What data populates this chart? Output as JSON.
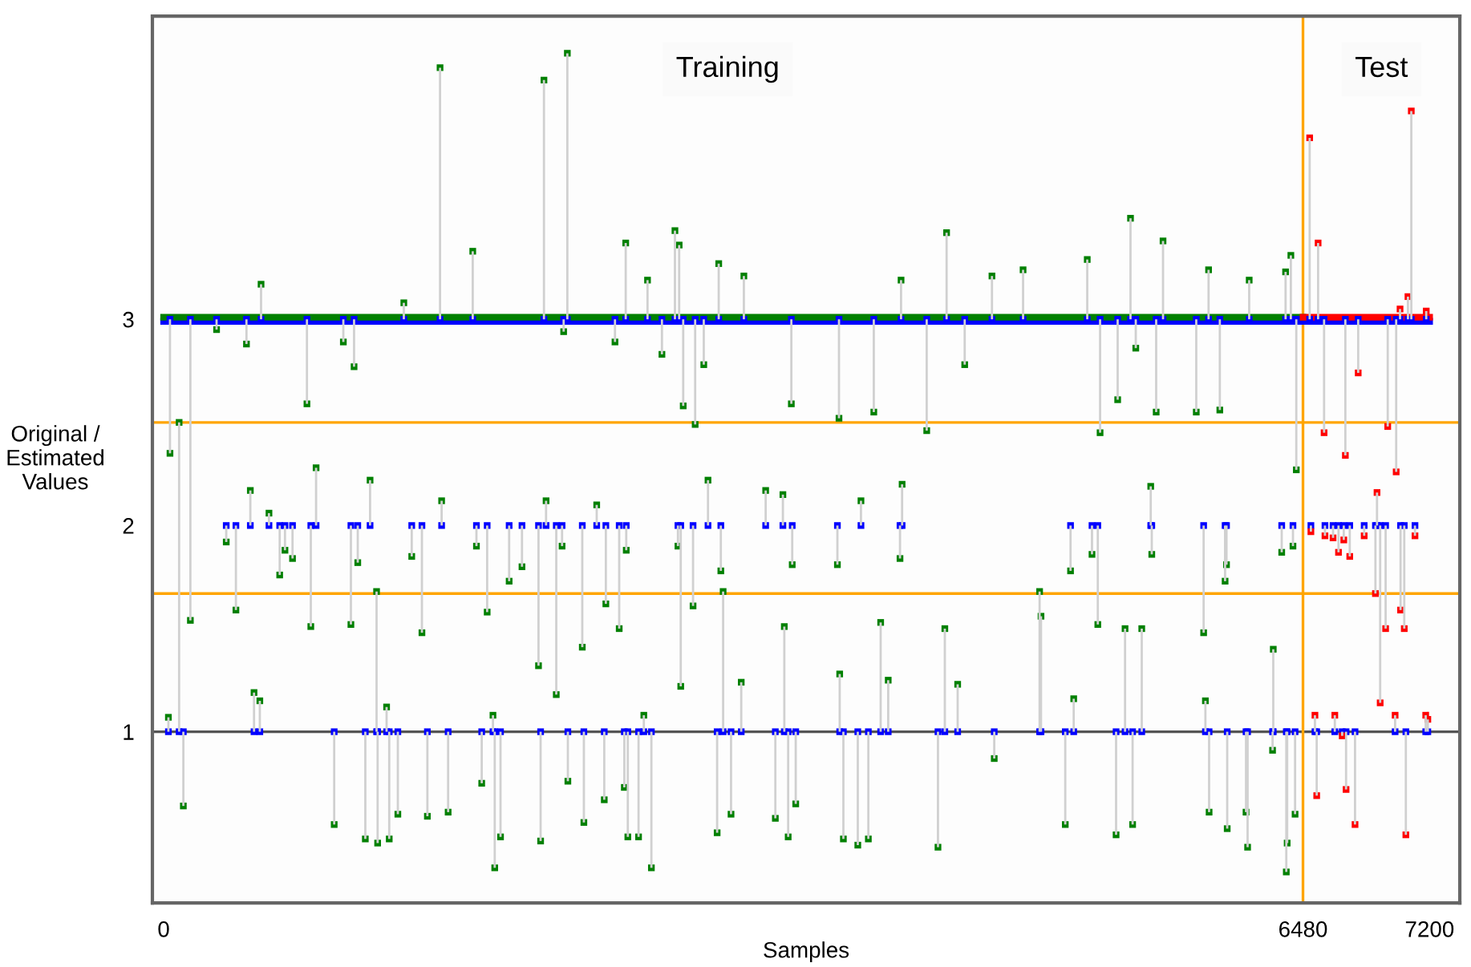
{
  "chart_data": {
    "type": "scatter",
    "xlabel": "Samples",
    "ylabel": "Original /\nEstimated\nValues",
    "xlim": [
      -64,
      7372
    ],
    "ylim": [
      0.17,
      4.47
    ],
    "xticks": [
      0,
      6480,
      7200
    ],
    "yticks": [
      1,
      2,
      3
    ],
    "marker": "square",
    "grid": false,
    "legend": false,
    "annotations": [
      "Training",
      "Test"
    ],
    "ref_lines": [
      {
        "axis": "y",
        "value": 1,
        "color": "#555555"
      },
      {
        "axis": "y",
        "value": 2.5,
        "color": "#ffa500"
      },
      {
        "axis": "y",
        "value": 1.67,
        "color": "#ffa500"
      },
      {
        "axis": "x",
        "value": 6480,
        "color": "#ffa500"
      }
    ],
    "series": [
      {
        "type": "line",
        "marker": "none",
        "color": "#0000ff",
        "x": [
          0,
          7200
        ],
        "values": [
          2.99,
          2.99
        ]
      },
      {
        "type": "line",
        "marker": "none",
        "color": "#008000",
        "x": [
          0,
          6480
        ],
        "values": [
          3.01,
          3.01
        ]
      },
      {
        "type": "line",
        "marker": "none",
        "color": "#ff0000",
        "x": [
          6480,
          7200
        ],
        "values": [
          3.01,
          3.01
        ]
      },
      {
        "color": "#0000ff",
        "x": [
          1572,
          2163,
          2296,
          1758,
          2628,
          554,
          2908,
          2932,
          2752,
          3157,
          815,
          36,
          88,
          2955,
          3023,
          301,
          471,
          1022,
          1083,
          2567,
          2834,
          3072,
          2275,
          1366,
          4453,
          5499,
          5684,
          5253,
          5943,
          6411,
          6381,
          6174,
          3300,
          4194,
          4711,
          4888,
          3570,
          4039,
          4556,
          5529,
          3841,
          5426,
          5645,
          5873,
          6007,
          6442,
          4340,
          5326,
          411,
          152,
          837,
          1065,
          1469,
          1840,
          2515,
          3011,
          2591,
          2132,
          2381,
          2233,
          2941,
          112,
          970,
          1147,
          1217,
          1283,
          1332,
          1500,
          1618,
          1883,
          1916,
          2144,
          2390,
          2506,
          2640,
          2701,
          2774,
          3148,
          1809,
          2299,
          2620,
          356,
          690,
          660,
          733,
          493,
          867,
          1104,
          1174,
          1411,
          1581,
          1779,
          1965,
          2038,
          2175,
          2266,
          2463,
          2631,
          2925,
          3096,
          3169,
          599,
          514,
          547,
          27,
          1873,
          2731,
          1268,
          1211,
          3182,
          3424,
          3522,
          4200,
          3966,
          4188,
          3575,
          3832,
          5158,
          5280,
          5614,
          5620,
          6037,
          6045,
          5915,
          5313,
          4982,
          4990,
          6359,
          6423,
          3530,
          4078,
          4443,
          5468,
          5563,
          6311,
          4121,
          4516,
          3845,
          3285,
          5176,
          5925,
          3227,
          3479,
          3552,
          3595,
          3866,
          3948,
          4008,
          4404,
          4724,
          5128,
          5417,
          5511,
          5946,
          6049,
          6156,
          6165,
          6385,
          6390,
          6435,
          6307,
          6518,
          6566,
          7096,
          7077,
          6794,
          7032,
          6600,
          6721,
          6962,
          7010,
          7181,
          6525,
          6605,
          6651,
          6682,
          6712,
          6746,
          6828,
          6901,
          7117,
          6892,
          7035,
          6950,
          7056,
          6919,
          7178,
          6548,
          6661,
          7004,
          6703,
          6558,
          6725,
          6776,
          7065,
          7190
        ],
        "values": [
          3,
          3,
          3,
          3,
          3,
          3,
          3,
          3,
          3,
          3,
          3,
          3,
          1,
          3,
          3,
          3,
          3,
          3,
          3,
          3,
          3,
          3,
          3,
          3,
          3,
          3,
          3,
          3,
          3,
          3,
          3,
          3,
          3,
          3,
          3,
          3,
          3,
          3,
          3,
          3,
          3,
          3,
          3,
          3,
          3,
          3,
          3,
          3,
          2,
          3,
          2,
          2,
          2,
          2,
          2,
          2,
          2,
          2,
          2,
          2,
          2,
          1,
          1,
          1,
          1,
          1,
          1,
          1,
          1,
          1,
          1,
          1,
          1,
          1,
          1,
          1,
          1,
          1,
          1,
          1,
          1,
          2,
          2,
          2,
          2,
          2,
          2,
          2,
          2,
          2,
          2,
          2,
          2,
          2,
          2,
          2,
          2,
          2,
          2,
          2,
          2,
          2,
          1,
          1,
          1,
          1,
          1,
          1,
          1,
          1,
          2,
          2,
          2,
          2,
          2,
          2,
          2,
          2,
          2,
          2,
          2,
          2,
          2,
          2,
          2,
          1,
          1,
          2,
          2,
          1,
          1,
          1,
          1,
          1,
          1,
          1,
          1,
          1,
          1,
          1,
          1,
          1,
          1,
          1,
          1,
          1,
          1,
          1,
          1,
          1,
          1,
          1,
          1,
          1,
          1,
          1,
          1,
          1,
          1,
          1,
          1,
          3,
          3,
          3,
          3,
          3,
          3,
          3,
          3,
          3,
          3,
          3,
          2,
          2,
          2,
          2,
          2,
          2,
          2,
          2,
          2,
          2,
          2,
          2,
          2,
          2,
          1,
          1,
          1,
          1,
          1,
          1,
          1,
          1,
          1,
          1
        ]
      },
      {
        "color": "#008000",
        "x": [
          1572,
          2163,
          2296,
          1758,
          2628,
          554,
          2908,
          2932,
          2752,
          3157,
          815,
          36,
          88,
          2955,
          3023,
          301,
          471,
          1022,
          1083,
          2567,
          2834,
          3072,
          2275,
          1366,
          4453,
          5499,
          5684,
          5253,
          5943,
          6411,
          6381,
          6174,
          3300,
          4194,
          4711,
          4888,
          3570,
          4039,
          4556,
          5529,
          3841,
          5426,
          5645,
          5873,
          6007,
          6442,
          4340,
          5326,
          411,
          152,
          837,
          1065,
          1469,
          1840,
          2515,
          3011,
          2591,
          2132,
          2381,
          2233,
          2941,
          112,
          970,
          1147,
          1217,
          1283,
          1332,
          1500,
          1618,
          1883,
          1916,
          2144,
          2390,
          2506,
          2640,
          2701,
          2774,
          3148,
          1809,
          2299,
          2620,
          356,
          690,
          660,
          733,
          493,
          867,
          1104,
          1174,
          1411,
          1581,
          1779,
          1965,
          2038,
          2175,
          2266,
          2463,
          2631,
          2925,
          3096,
          3169,
          599,
          514,
          547,
          27,
          1873,
          2731,
          1268,
          1211,
          3182,
          3424,
          3522,
          4200,
          3966,
          4188,
          3575,
          3832,
          5158,
          5280,
          5614,
          5620,
          6037,
          6045,
          5915,
          5313,
          4982,
          4990,
          6359,
          6423,
          3530,
          4078,
          4443,
          5468,
          5563,
          6311,
          4121,
          4516,
          3845,
          3285,
          5176,
          5925,
          3227,
          3479,
          3552,
          3595,
          3866,
          3948,
          4008,
          4404,
          4724,
          5128,
          5417,
          5511,
          5946,
          6049,
          6156,
          6165,
          6385,
          6390,
          6435,
          6307
        ],
        "values": [
          4.22,
          4.16,
          4.29,
          3.33,
          3.37,
          3.17,
          3.43,
          3.36,
          3.19,
          3.27,
          2.59,
          2.35,
          2.5,
          2.58,
          2.49,
          2.95,
          2.88,
          2.89,
          2.77,
          2.89,
          2.83,
          2.78,
          2.94,
          3.08,
          3.42,
          3.49,
          3.38,
          3.29,
          3.24,
          3.31,
          3.23,
          3.19,
          3.21,
          3.19,
          3.21,
          3.24,
          2.59,
          2.55,
          2.78,
          2.86,
          2.52,
          2.61,
          2.55,
          2.55,
          2.56,
          2.27,
          2.46,
          2.45,
          1.59,
          1.54,
          1.51,
          1.52,
          1.48,
          1.58,
          1.62,
          1.61,
          1.5,
          1.32,
          1.41,
          1.18,
          1.22,
          0.64,
          0.55,
          0.48,
          0.46,
          0.48,
          0.6,
          0.59,
          0.61,
          0.34,
          0.49,
          0.47,
          0.56,
          0.67,
          0.49,
          0.49,
          0.34,
          0.51,
          0.75,
          0.76,
          0.73,
          1.92,
          1.88,
          1.76,
          1.84,
          2.17,
          2.28,
          1.82,
          2.22,
          1.85,
          2.12,
          1.9,
          1.73,
          1.8,
          2.12,
          1.9,
          2.1,
          1.88,
          1.9,
          2.22,
          1.78,
          2.06,
          1.19,
          1.15,
          1.07,
          1.08,
          1.08,
          1.12,
          1.68,
          1.68,
          2.17,
          2.15,
          2.2,
          2.12,
          1.84,
          1.81,
          1.81,
          1.78,
          1.86,
          2.19,
          1.86,
          1.73,
          1.81,
          1.48,
          1.52,
          1.68,
          1.56,
          1.87,
          1.9,
          1.51,
          1.53,
          1.5,
          1.5,
          1.5,
          1.4,
          1.25,
          1.23,
          1.28,
          1.24,
          1.16,
          1.15,
          0.6,
          0.58,
          0.49,
          0.65,
          0.48,
          0.45,
          0.48,
          0.44,
          0.87,
          0.55,
          0.5,
          0.55,
          0.61,
          0.53,
          0.61,
          0.44,
          0.32,
          0.46,
          0.6,
          0.91
        ],
        "errors": [
          [
            3,
            4.22
          ],
          [
            3,
            4.16
          ],
          [
            3,
            4.29
          ],
          [
            3,
            3.33
          ],
          [
            3,
            3.37
          ],
          [
            3,
            3.17
          ],
          [
            3,
            3.43
          ],
          [
            3,
            3.36
          ],
          [
            3,
            3.19
          ],
          [
            3,
            3.27
          ],
          [
            2.59,
            3
          ],
          [
            2.35,
            3
          ],
          [
            1,
            2.5
          ],
          [
            2.58,
            3
          ],
          [
            2.49,
            3
          ],
          [
            2.95,
            3
          ],
          [
            2.88,
            3
          ],
          [
            2.89,
            3
          ],
          [
            2.77,
            3
          ],
          [
            2.89,
            3
          ],
          [
            2.83,
            3
          ],
          [
            2.78,
            3
          ],
          [
            2.94,
            3
          ],
          [
            3,
            3.08
          ],
          [
            3,
            3.42
          ],
          [
            3,
            3.49
          ],
          [
            3,
            3.38
          ],
          [
            3,
            3.29
          ],
          [
            3,
            3.24
          ],
          [
            3,
            3.31
          ],
          [
            3,
            3.23
          ],
          [
            3,
            3.19
          ],
          [
            3,
            3.21
          ],
          [
            3,
            3.19
          ],
          [
            3,
            3.21
          ],
          [
            3,
            3.24
          ],
          [
            2.59,
            3
          ],
          [
            2.55,
            3
          ],
          [
            2.78,
            3
          ],
          [
            2.86,
            3
          ],
          [
            2.52,
            3
          ],
          [
            2.61,
            3
          ],
          [
            2.55,
            3
          ],
          [
            2.55,
            3
          ],
          [
            2.56,
            3
          ],
          [
            2.27,
            3
          ],
          [
            2.46,
            3
          ],
          [
            2.45,
            3
          ],
          [
            1.59,
            2
          ],
          [
            1.54,
            3
          ],
          [
            1.51,
            2
          ],
          [
            1.52,
            2
          ],
          [
            1.48,
            2
          ],
          [
            1.58,
            2
          ],
          [
            1.62,
            2
          ],
          [
            1.61,
            2
          ],
          [
            1.5,
            2
          ],
          [
            1.32,
            2
          ],
          [
            1.41,
            2
          ],
          [
            1.18,
            2
          ],
          [
            1.22,
            2
          ],
          [
            0.64,
            1
          ],
          [
            0.55,
            1
          ],
          [
            0.48,
            1
          ],
          [
            0.46,
            1
          ],
          [
            0.48,
            1
          ],
          [
            0.6,
            1
          ],
          [
            0.59,
            1
          ],
          [
            0.61,
            1
          ],
          [
            0.34,
            1
          ],
          [
            0.49,
            1
          ],
          [
            0.47,
            1
          ],
          [
            0.56,
            1
          ],
          [
            0.67,
            1
          ],
          [
            0.49,
            1
          ],
          [
            0.49,
            1
          ],
          [
            0.34,
            1
          ],
          [
            0.51,
            1
          ],
          [
            0.75,
            1
          ],
          [
            0.76,
            1
          ],
          [
            0.73,
            1
          ],
          [
            1.92,
            2
          ],
          [
            1.88,
            2
          ],
          [
            1.76,
            2
          ],
          [
            1.84,
            2
          ],
          [
            2,
            2.17
          ],
          [
            2,
            2.28
          ],
          [
            1.82,
            2
          ],
          [
            2,
            2.22
          ],
          [
            1.85,
            2
          ],
          [
            2,
            2.12
          ],
          [
            1.9,
            2
          ],
          [
            1.73,
            2
          ],
          [
            1.8,
            2
          ],
          [
            2,
            2.12
          ],
          [
            1.9,
            2
          ],
          [
            2,
            2.1
          ],
          [
            1.88,
            2
          ],
          [
            1.9,
            2
          ],
          [
            2,
            2.22
          ],
          [
            1.78,
            2
          ],
          [
            2,
            2.06
          ],
          [
            1,
            1.19
          ],
          [
            1,
            1.15
          ],
          [
            1,
            1.07
          ],
          [
            1,
            1.08
          ],
          [
            1,
            1.08
          ],
          [
            1,
            1.12
          ],
          [
            1,
            1.68
          ],
          [
            1,
            1.68
          ],
          [
            2,
            2.17
          ],
          [
            2,
            2.15
          ],
          [
            2,
            2.2
          ],
          [
            2,
            2.12
          ],
          [
            1.84,
            2
          ],
          [
            1.81,
            2
          ],
          [
            1.81,
            2
          ],
          [
            1.78,
            2
          ],
          [
            1.86,
            2
          ],
          [
            2,
            2.19
          ],
          [
            1.86,
            2
          ],
          [
            1.73,
            2
          ],
          [
            1.81,
            2
          ],
          [
            1.48,
            2
          ],
          [
            1.52,
            2
          ],
          [
            1,
            1.68
          ],
          [
            1,
            1.56
          ],
          [
            1.87,
            2
          ],
          [
            1.9,
            2
          ],
          [
            1,
            1.51
          ],
          [
            1,
            1.53
          ],
          [
            1,
            1.5
          ],
          [
            1,
            1.5
          ],
          [
            1,
            1.5
          ],
          [
            1,
            1.4
          ],
          [
            1,
            1.25
          ],
          [
            1,
            1.23
          ],
          [
            1,
            1.28
          ],
          [
            1,
            1.24
          ],
          [
            1,
            1.16
          ],
          [
            1,
            1.15
          ],
          [
            0.6,
            1
          ],
          [
            0.58,
            1
          ],
          [
            0.49,
            1
          ],
          [
            0.65,
            1
          ],
          [
            0.48,
            1
          ],
          [
            0.45,
            1
          ],
          [
            0.48,
            1
          ],
          [
            0.44,
            1
          ],
          [
            0.87,
            1
          ],
          [
            0.55,
            1
          ],
          [
            0.5,
            1
          ],
          [
            0.55,
            1
          ],
          [
            0.61,
            1
          ],
          [
            0.53,
            1
          ],
          [
            0.61,
            1
          ],
          [
            0.44,
            1
          ],
          [
            0.32,
            1
          ],
          [
            0.46,
            1
          ],
          [
            0.6,
            1
          ],
          [
            0.91,
            1
          ]
        ]
      },
      {
        "color": "#ff0000",
        "x": [
          6518,
          6566,
          7096,
          7077,
          6794,
          7032,
          6600,
          6721,
          6962,
          7010,
          7181,
          6525,
          6605,
          6651,
          6682,
          6712,
          6746,
          6828,
          6901,
          7117,
          6892,
          7035,
          6950,
          7056,
          6919,
          7178,
          6548,
          6661,
          7004,
          6703,
          6558,
          6725,
          6776,
          7065,
          7190
        ],
        "values": [
          3.88,
          3.37,
          4.01,
          3.11,
          2.74,
          3.05,
          2.45,
          2.34,
          2.48,
          2.26,
          3.04,
          1.97,
          1.95,
          1.94,
          1.87,
          1.93,
          1.85,
          1.95,
          2.16,
          1.95,
          1.67,
          1.59,
          1.5,
          1.5,
          1.14,
          1.08,
          1.08,
          1.08,
          1.08,
          0.98,
          0.69,
          0.72,
          0.55,
          0.5,
          1.06
        ],
        "errors": [
          [
            3,
            3.88
          ],
          [
            3,
            3.37
          ],
          [
            3,
            4.01
          ],
          [
            3,
            3.11
          ],
          [
            2.74,
            3
          ],
          [
            3,
            3.05
          ],
          [
            2.45,
            3
          ],
          [
            2.34,
            3
          ],
          [
            2.48,
            3
          ],
          [
            2.26,
            3
          ],
          [
            3,
            3.04
          ],
          [
            1.97,
            2
          ],
          [
            1.95,
            2
          ],
          [
            1.94,
            2
          ],
          [
            1.87,
            2
          ],
          [
            1.93,
            2
          ],
          [
            1.85,
            2
          ],
          [
            1.95,
            2
          ],
          [
            2,
            2.16
          ],
          [
            1.95,
            2
          ],
          [
            1.67,
            2
          ],
          [
            1.59,
            2
          ],
          [
            1.5,
            2
          ],
          [
            1.5,
            2
          ],
          [
            1.14,
            2
          ],
          [
            1,
            1.08
          ],
          [
            1,
            1.08
          ],
          [
            1,
            1.08
          ],
          [
            1,
            1.08
          ],
          [
            0.98,
            1
          ],
          [
            0.69,
            1
          ],
          [
            0.72,
            1
          ],
          [
            0.55,
            1
          ],
          [
            0.5,
            1
          ],
          [
            1,
            1.06
          ]
        ]
      }
    ]
  }
}
